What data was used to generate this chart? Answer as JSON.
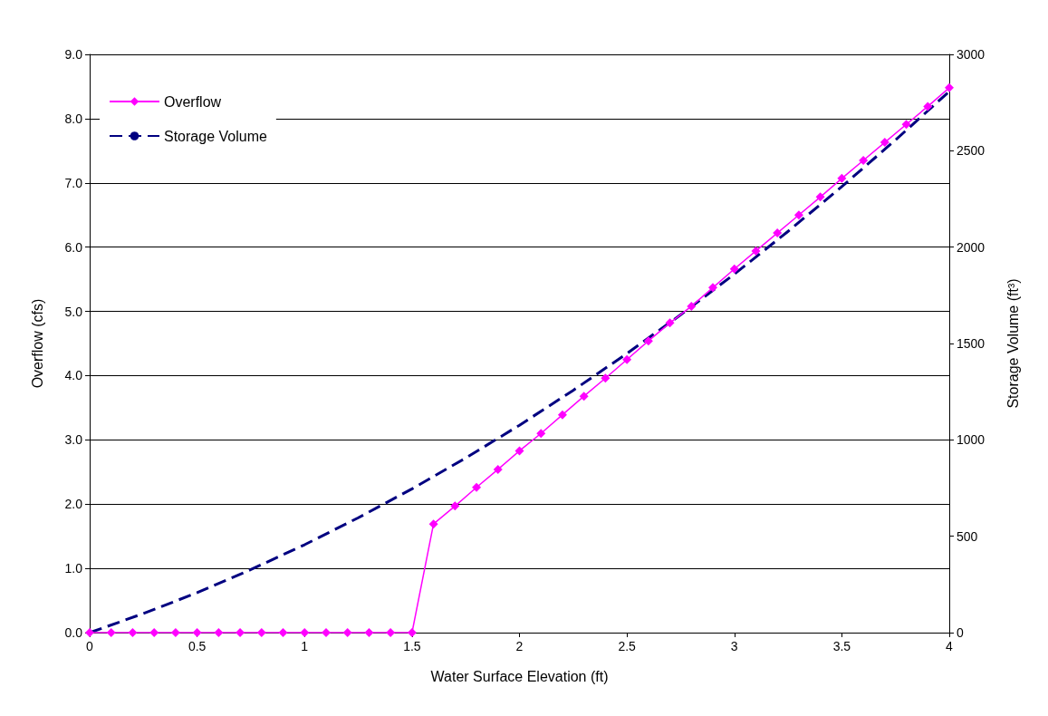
{
  "chart_data": {
    "type": "line",
    "xlabel": "Water Surface Elevation (ft)",
    "ylabel": "Overflow (cfs)",
    "y2label": "Storage Volume (ft³)",
    "xlim": [
      0,
      4
    ],
    "xticks": [
      0,
      0.5,
      1,
      1.5,
      2,
      2.5,
      3,
      3.5,
      4
    ],
    "ylim": [
      0,
      9
    ],
    "yticks": [
      {
        "value": 0,
        "label": "0.0"
      },
      {
        "value": 1,
        "label": "1.0"
      },
      {
        "value": 2,
        "label": "2.0"
      },
      {
        "value": 3,
        "label": "3.0"
      },
      {
        "value": 4,
        "label": "4.0"
      },
      {
        "value": 5,
        "label": "5.0"
      },
      {
        "value": 6,
        "label": "6.0"
      },
      {
        "value": 7,
        "label": "7.0"
      },
      {
        "value": 8,
        "label": "8.0"
      },
      {
        "value": 9,
        "label": "9.0"
      }
    ],
    "y2lim": [
      0,
      3000
    ],
    "y2ticks": [
      0,
      500,
      1000,
      1500,
      2000,
      2500,
      3000
    ],
    "grid": "y",
    "legend": "top left",
    "series": [
      {
        "name": "Overflow",
        "color": "#ff00ff",
        "marker": "diamond",
        "line_style": "solid",
        "x": [
          0,
          0.1,
          0.2,
          0.3,
          0.4,
          0.5,
          0.6,
          0.7,
          0.8,
          0.9,
          1,
          1.1,
          1.2,
          1.3,
          1.4,
          1.5,
          1.6,
          1.7,
          1.8,
          1.9,
          2,
          2.1,
          2.2,
          2.3,
          2.4,
          2.5,
          2.6,
          2.7,
          2.8,
          2.9,
          3,
          3.1,
          3.2,
          3.3,
          3.4,
          3.5,
          3.6,
          3.7,
          3.8,
          3.9,
          4
        ],
        "values": [
          0,
          0,
          0,
          0,
          0,
          0,
          0,
          0,
          0,
          0,
          0,
          0,
          0,
          0,
          0,
          0,
          1.69,
          1.97,
          2.26,
          2.54,
          2.83,
          3.1,
          3.39,
          3.68,
          3.96,
          4.25,
          4.54,
          4.82,
          5.08,
          5.37,
          5.66,
          5.94,
          6.22,
          6.5,
          6.78,
          7.07,
          7.35,
          7.63,
          7.91,
          8.19,
          8.48
        ]
      },
      {
        "name": "Storage Volume",
        "color": "#000080",
        "marker": "none",
        "line_style": "dashed",
        "axis": "y2",
        "x": [
          0,
          0.25,
          0.5,
          0.75,
          1,
          1.25,
          1.5,
          1.75,
          2,
          2.25,
          2.5,
          2.75,
          3,
          3.25,
          3.5,
          3.75,
          4
        ],
        "values": [
          0,
          99,
          207,
          327,
          456,
          596,
          746,
          906,
          1076,
          1257,
          1448,
          1649,
          1860,
          2082,
          2314,
          2556,
          2808
        ]
      }
    ]
  }
}
